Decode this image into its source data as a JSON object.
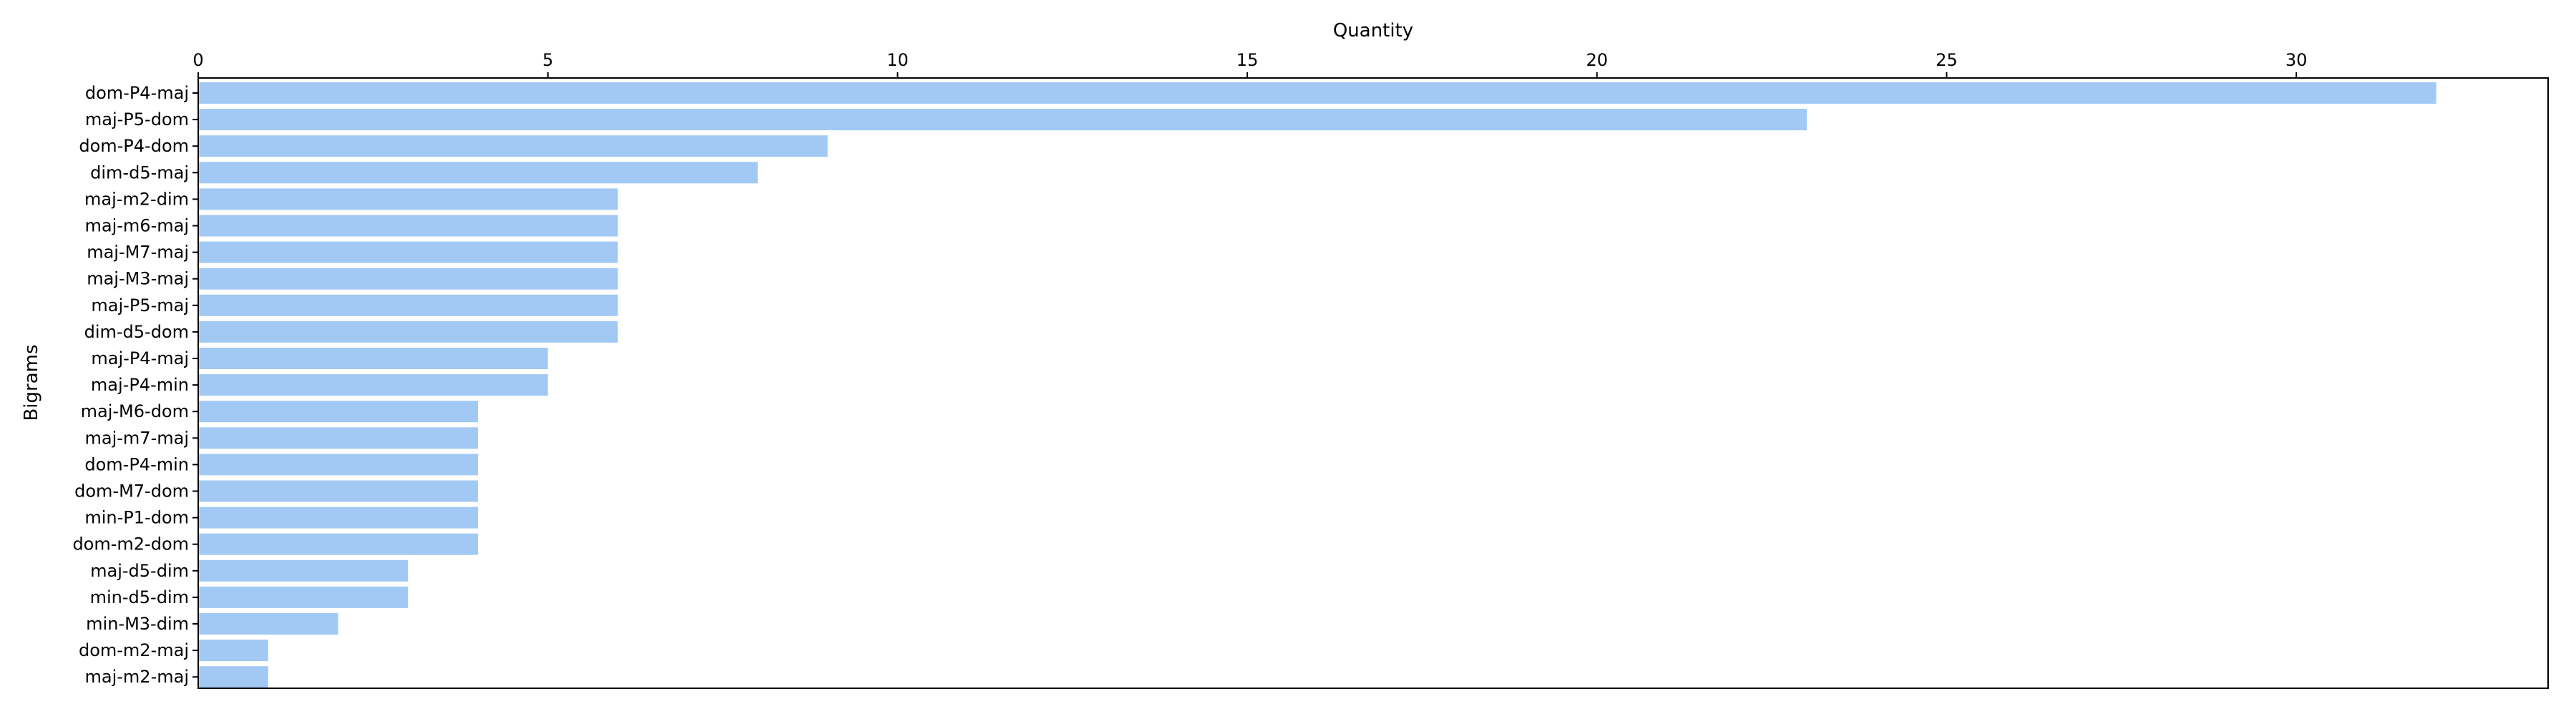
{
  "chart_data": {
    "type": "bar",
    "orientation": "horizontal",
    "xlabel": "Quantity",
    "ylabel": "Bigrams",
    "x_axis_position": "top",
    "xlim": [
      0,
      33.6
    ],
    "xticks": [
      0,
      5,
      10,
      15,
      20,
      25,
      30
    ],
    "grid": false,
    "bar_color": "#a1c9f4",
    "categories": [
      "dom-P4-maj",
      "maj-P5-dom",
      "dom-P4-dom",
      "dim-d5-maj",
      "maj-m2-dim",
      "maj-m6-maj",
      "maj-M7-maj",
      "maj-M3-maj",
      "maj-P5-maj",
      "dim-d5-dom",
      "maj-P4-maj",
      "maj-P4-min",
      "maj-M6-dom",
      "maj-m7-maj",
      "dom-P4-min",
      "dom-M7-dom",
      "min-P1-dom",
      "dom-m2-dom",
      "maj-d5-dim",
      "min-d5-dim",
      "min-M3-dim",
      "dom-m2-maj",
      "maj-m2-maj"
    ],
    "values": [
      32,
      23,
      9,
      8,
      6,
      6,
      6,
      6,
      6,
      6,
      5,
      5,
      4,
      4,
      4,
      4,
      4,
      4,
      3,
      3,
      2,
      1,
      1
    ]
  }
}
